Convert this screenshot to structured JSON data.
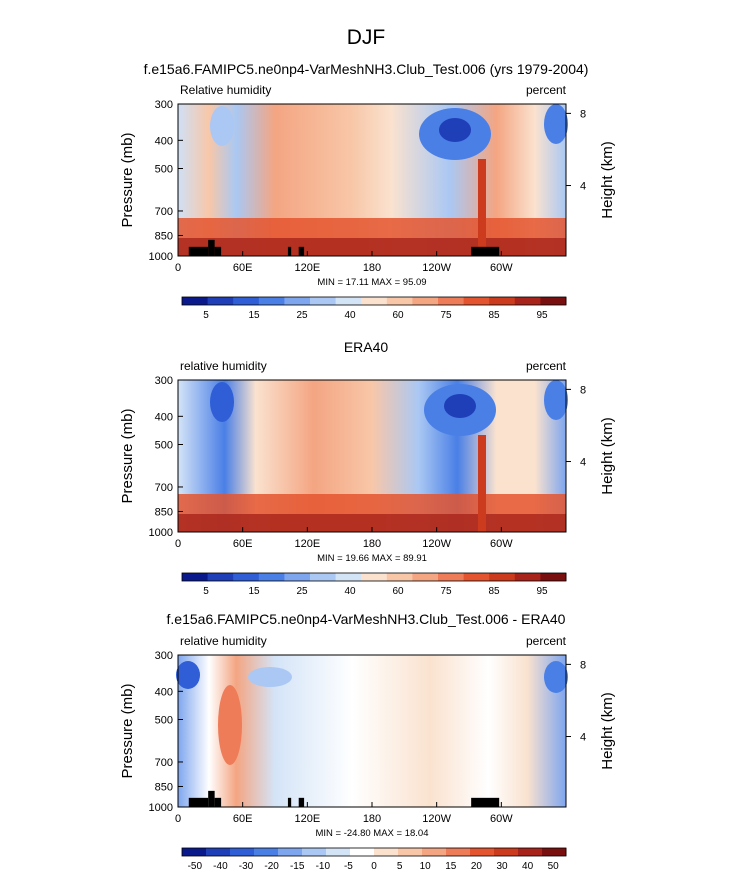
{
  "figure_title": "DJF",
  "chart_data": [
    {
      "type": "heatmap",
      "title": "f.e15a6.FAMIPC5.ne0np4-VarMeshNH3.Club_Test.006 (yrs 1979-2004)",
      "left_label": "Relative humidity",
      "right_label": "percent",
      "ylabel": "Pressure (mb)",
      "y2label": "Height (km)",
      "x_ticks": [
        "0",
        "60E",
        "120E",
        "180",
        "120W",
        "60W"
      ],
      "y_ticks": [
        "300",
        "400",
        "500",
        "700",
        "850",
        "1000"
      ],
      "y2_ticks": [
        "8",
        "4"
      ],
      "stats": "MIN = 17.11   MAX = 95.09",
      "colorbar": {
        "colors": [
          "#0a1a8c",
          "#1f3fb8",
          "#2f5ed6",
          "#4a7fe6",
          "#7ea6ef",
          "#aac8f3",
          "#d4e4f7",
          "#fae2cf",
          "#f8c7a8",
          "#f4a582",
          "#ee7c59",
          "#e4552f",
          "#cc3b1d",
          "#a8241a",
          "#7a0f0f"
        ],
        "labels": [
          "5",
          "15",
          "25",
          "40",
          "60",
          "75",
          "85",
          "95"
        ]
      },
      "terrain": [
        {
          "lon_start": 10,
          "lon_end": 28,
          "p_top": 930
        },
        {
          "lon_start": 28,
          "lon_end": 34,
          "p_top": 880
        },
        {
          "lon_start": 34,
          "lon_end": 40,
          "p_top": 930
        },
        {
          "lon_start": 102,
          "lon_end": 105,
          "p_top": 930
        },
        {
          "lon_start": 112,
          "lon_end": 117,
          "p_top": 930
        },
        {
          "lon_start": 272,
          "lon_end": 298,
          "p_top": 930
        }
      ]
    },
    {
      "type": "heatmap",
      "title": "ERA40",
      "left_label": "relative humidity",
      "right_label": "percent",
      "ylabel": "Pressure (mb)",
      "y2label": "Height (km)",
      "x_ticks": [
        "0",
        "60E",
        "120E",
        "180",
        "120W",
        "60W"
      ],
      "y_ticks": [
        "300",
        "400",
        "500",
        "700",
        "850",
        "1000"
      ],
      "y2_ticks": [
        "8",
        "4"
      ],
      "stats": "MIN = 19.66   MAX = 89.91",
      "colorbar": {
        "colors": [
          "#0a1a8c",
          "#1f3fb8",
          "#2f5ed6",
          "#4a7fe6",
          "#7ea6ef",
          "#aac8f3",
          "#d4e4f7",
          "#fae2cf",
          "#f8c7a8",
          "#f4a582",
          "#ee7c59",
          "#e4552f",
          "#cc3b1d",
          "#a8241a",
          "#7a0f0f"
        ],
        "labels": [
          "5",
          "15",
          "25",
          "40",
          "60",
          "75",
          "85",
          "95"
        ]
      },
      "terrain": []
    },
    {
      "type": "heatmap",
      "title": "f.e15a6.FAMIPC5.ne0np4-VarMeshNH3.Club_Test.006 - ERA40",
      "left_label": "relative humidity",
      "right_label": "percent",
      "ylabel": "Pressure (mb)",
      "y2label": "Height (km)",
      "x_ticks": [
        "0",
        "60E",
        "120E",
        "180",
        "120W",
        "60W"
      ],
      "y_ticks": [
        "300",
        "400",
        "500",
        "700",
        "850",
        "1000"
      ],
      "y2_ticks": [
        "8",
        "4"
      ],
      "stats": "MIN = -24.80   MAX = 18.04",
      "colorbar": {
        "colors": [
          "#0a1a8c",
          "#1f3fb8",
          "#2f5ed6",
          "#4a7fe6",
          "#7ea6ef",
          "#aac8f3",
          "#d4e4f7",
          "#ffffff",
          "#fae2cf",
          "#f8c7a8",
          "#f4a582",
          "#ee7c59",
          "#e4552f",
          "#cc3b1d",
          "#a8241a",
          "#7a0f0f"
        ],
        "labels": [
          "-50",
          "-40",
          "-30",
          "-20",
          "-15",
          "-10",
          "-5",
          "0",
          "5",
          "10",
          "15",
          "20",
          "30",
          "40",
          "50"
        ]
      },
      "terrain": [
        {
          "lon_start": 10,
          "lon_end": 28,
          "p_top": 930
        },
        {
          "lon_start": 28,
          "lon_end": 34,
          "p_top": 880
        },
        {
          "lon_start": 34,
          "lon_end": 40,
          "p_top": 930
        },
        {
          "lon_start": 102,
          "lon_end": 105,
          "p_top": 930
        },
        {
          "lon_start": 112,
          "lon_end": 117,
          "p_top": 930
        },
        {
          "lon_start": 272,
          "lon_end": 298,
          "p_top": 930
        }
      ]
    }
  ]
}
